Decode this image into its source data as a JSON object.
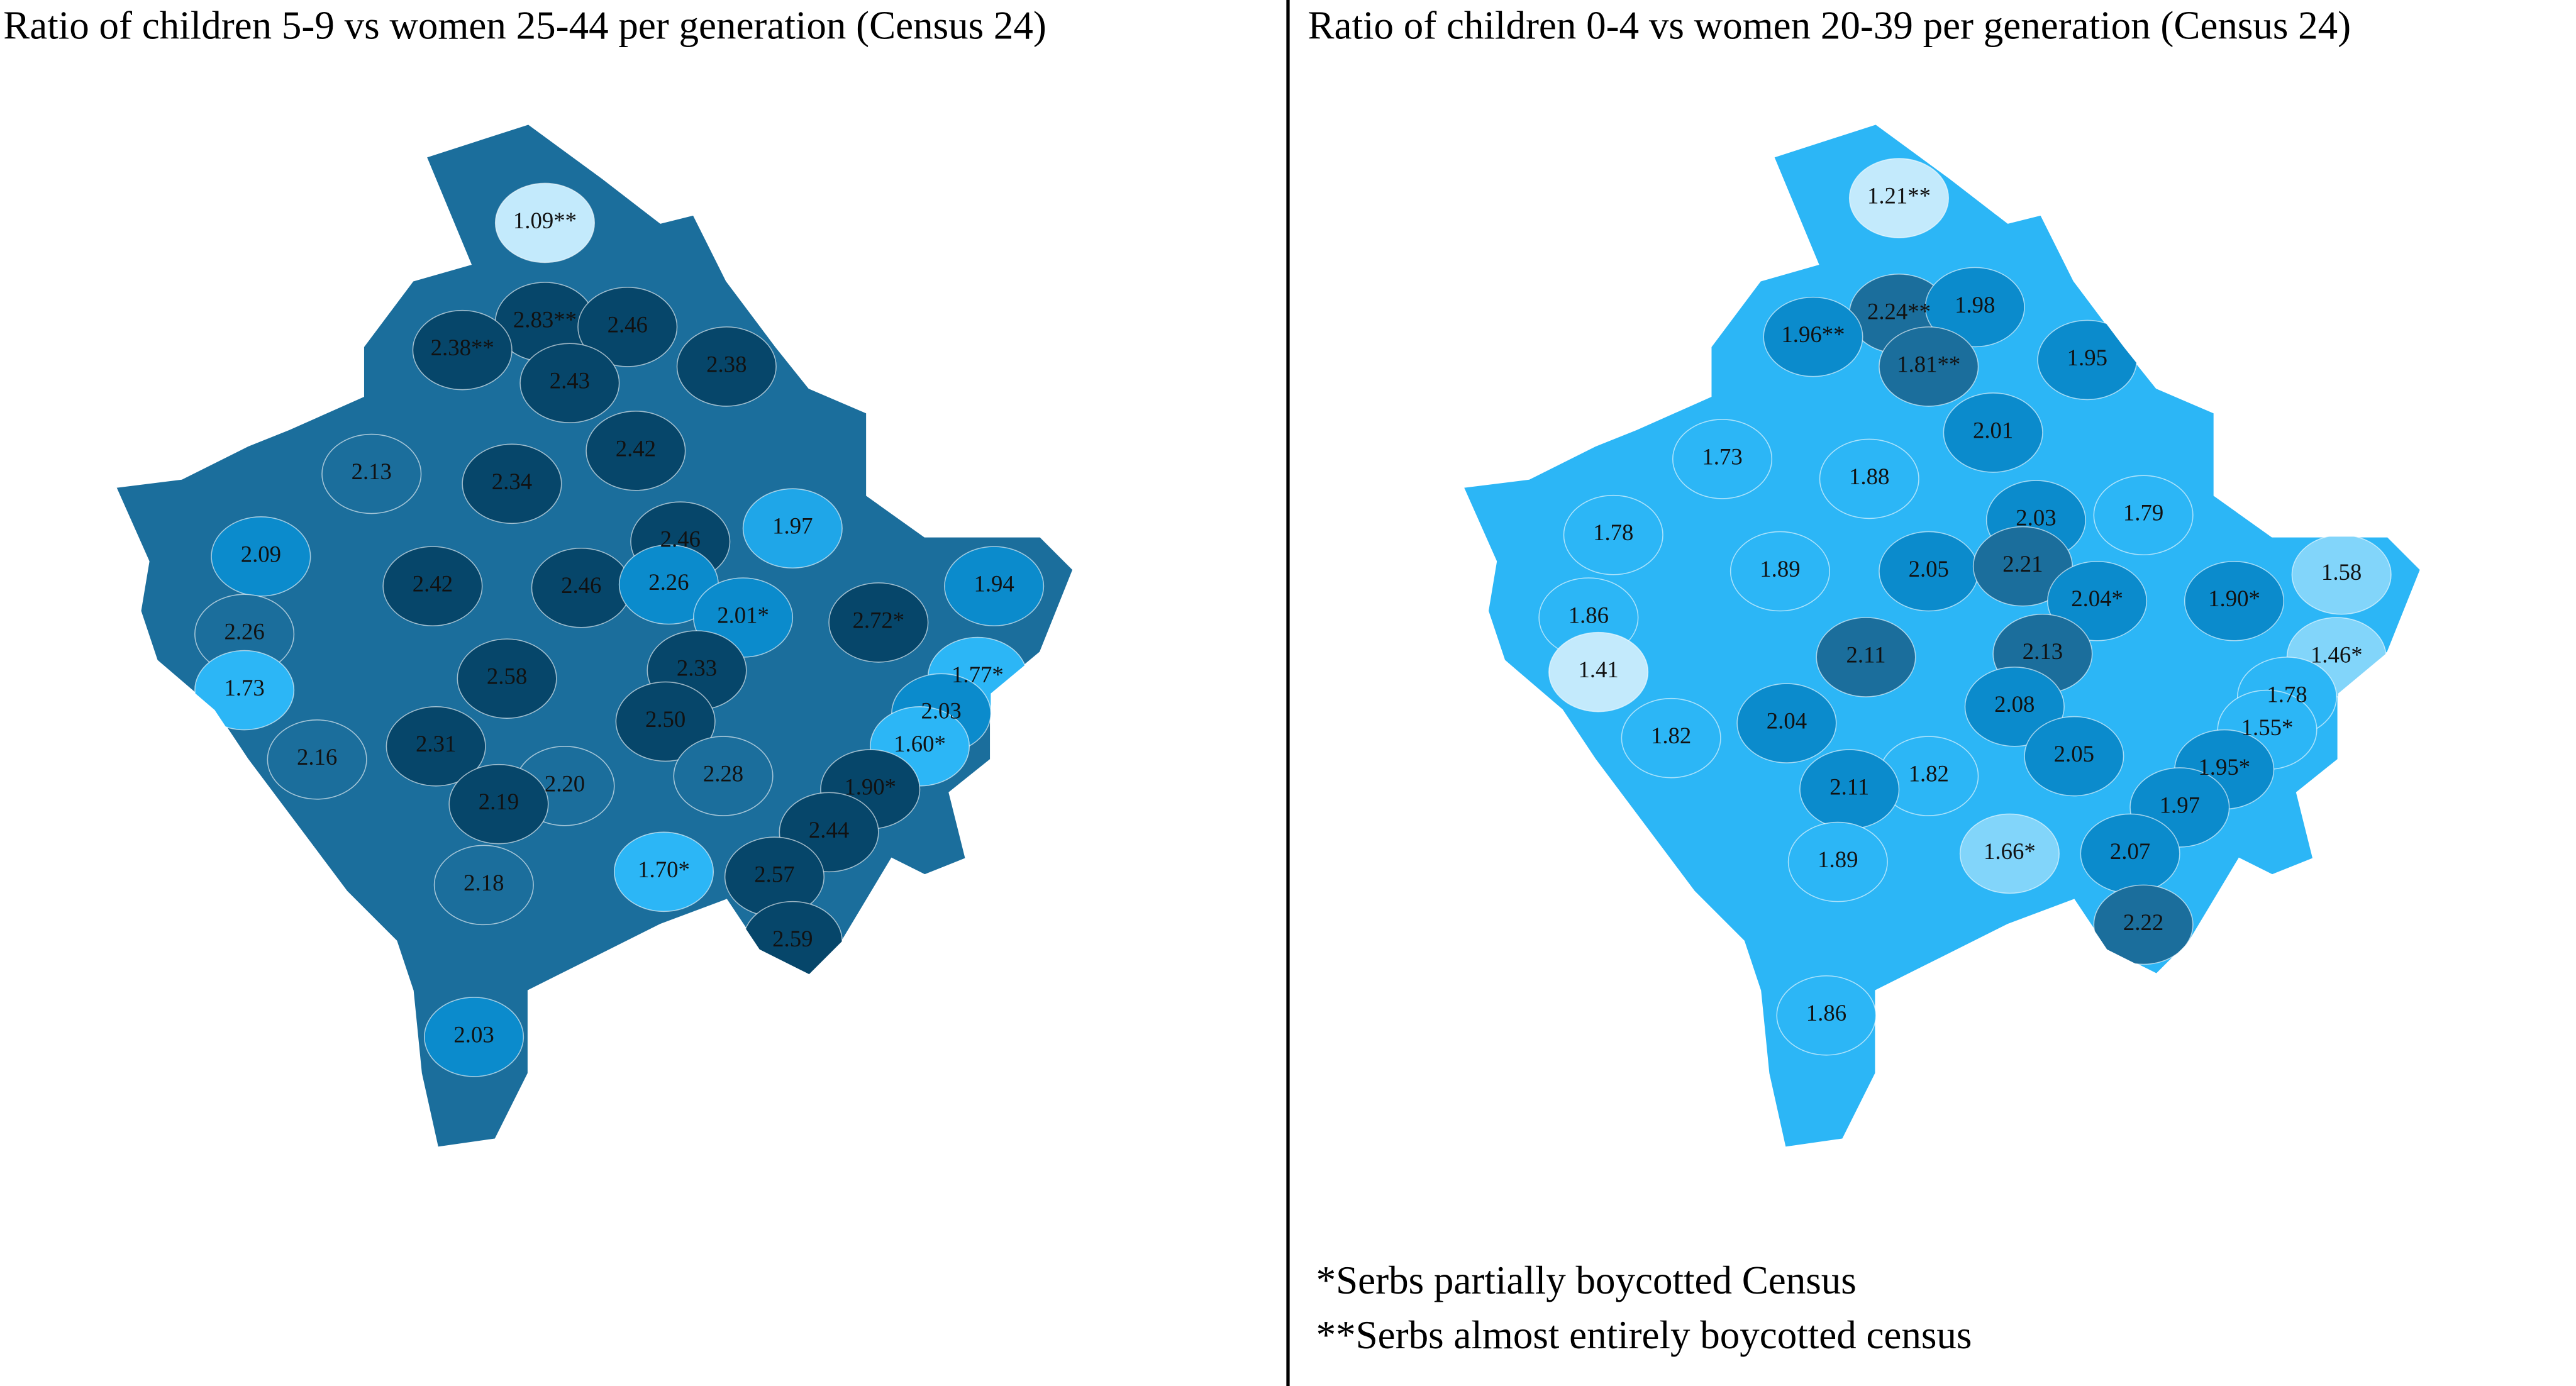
{
  "maps": [
    {
      "title": "Ratio of children 5-9 vs women 25-44 per generation (Census 24)",
      "regions": [
        {
          "label": "1.09**",
          "color": "#c3eafc"
        },
        {
          "label": "2.83**",
          "color": "#06466a"
        },
        {
          "label": "2.38**",
          "color": "#06466a"
        },
        {
          "label": "2.46",
          "color": "#06466a"
        },
        {
          "label": "2.43",
          "color": "#06466a"
        },
        {
          "label": "2.38",
          "color": "#06466a"
        },
        {
          "label": "2.13",
          "color": "#1b6e9c"
        },
        {
          "label": "2.42",
          "color": "#06466a"
        },
        {
          "label": "2.34",
          "color": "#06466a"
        },
        {
          "label": "2.09",
          "color": "#0b8bcc"
        },
        {
          "label": "1.97",
          "color": "#1fa6e8"
        },
        {
          "label": "2.46",
          "color": "#06466a"
        },
        {
          "label": "1.94",
          "color": "#0b8bcc"
        },
        {
          "label": "2.42",
          "color": "#06466a"
        },
        {
          "label": "2.46",
          "color": "#06466a"
        },
        {
          "label": "2.26",
          "color": "#0b8bcc"
        },
        {
          "label": "2.26",
          "color": "#1b6e9c"
        },
        {
          "label": "2.01*",
          "color": "#0b8bcc"
        },
        {
          "label": "2.72*",
          "color": "#06466a"
        },
        {
          "label": "1.73",
          "color": "#2cb6f6"
        },
        {
          "label": "2.33",
          "color": "#06466a"
        },
        {
          "label": "1.77*",
          "color": "#2cb6f6"
        },
        {
          "label": "2.58",
          "color": "#06466a"
        },
        {
          "label": "2.50",
          "color": "#06466a"
        },
        {
          "label": "2.03",
          "color": "#0b8bcc"
        },
        {
          "label": "2.16",
          "color": "#1b6e9c"
        },
        {
          "label": "2.31",
          "color": "#06466a"
        },
        {
          "label": "2.20",
          "color": "#1b6e9c"
        },
        {
          "label": "2.28",
          "color": "#1b6e9c"
        },
        {
          "label": "1.60*",
          "color": "#2cb6f6"
        },
        {
          "label": "1.90*",
          "color": "#06466a"
        },
        {
          "label": "2.19",
          "color": "#06466a"
        },
        {
          "label": "2.44",
          "color": "#06466a"
        },
        {
          "label": "2.18",
          "color": "#1b6e9c"
        },
        {
          "label": "1.70*",
          "color": "#2cb6f6"
        },
        {
          "label": "2.57",
          "color": "#06466a"
        },
        {
          "label": "2.59",
          "color": "#06466a"
        },
        {
          "label": "2.03",
          "color": "#0b8bcc"
        }
      ]
    },
    {
      "title": "Ratio of children 0-4 vs women 20-39 per generation (Census 24)",
      "regions": [
        {
          "label": "1.21**",
          "color": "#c3eafc"
        },
        {
          "label": "2.24**",
          "color": "#1b6e9c"
        },
        {
          "label": "1.98",
          "color": "#0b8bcc"
        },
        {
          "label": "1.96**",
          "color": "#0b8bcc"
        },
        {
          "label": "1.81**",
          "color": "#1b6e9c"
        },
        {
          "label": "1.95",
          "color": "#0b8bcc"
        },
        {
          "label": "2.01",
          "color": "#0b8bcc"
        },
        {
          "label": "1.73",
          "color": "#2cb6f6"
        },
        {
          "label": "1.88",
          "color": "#2cb6f6"
        },
        {
          "label": "2.03",
          "color": "#0b8bcc"
        },
        {
          "label": "1.79",
          "color": "#2cb6f6"
        },
        {
          "label": "1.58",
          "color": "#82d5fa"
        },
        {
          "label": "1.78",
          "color": "#2cb6f6"
        },
        {
          "label": "2.05",
          "color": "#0b8bcc"
        },
        {
          "label": "2.21",
          "color": "#1b6e9c"
        },
        {
          "label": "1.89",
          "color": "#2cb6f6"
        },
        {
          "label": "2.04*",
          "color": "#0b8bcc"
        },
        {
          "label": "1.90*",
          "color": "#0b8bcc"
        },
        {
          "label": "1.86",
          "color": "#2cb6f6"
        },
        {
          "label": "1.41",
          "color": "#c3eafc"
        },
        {
          "label": "1.46*",
          "color": "#82d5fa"
        },
        {
          "label": "2.11",
          "color": "#1b6e9c"
        },
        {
          "label": "2.13",
          "color": "#1b6e9c"
        },
        {
          "label": "1.78",
          "color": "#2cb6f6"
        },
        {
          "label": "2.08",
          "color": "#0b8bcc"
        },
        {
          "label": "1.55*",
          "color": "#2cb6f6"
        },
        {
          "label": "1.82",
          "color": "#2cb6f6"
        },
        {
          "label": "2.04",
          "color": "#0b8bcc"
        },
        {
          "label": "2.05",
          "color": "#0b8bcc"
        },
        {
          "label": "1.95*",
          "color": "#0b8bcc"
        },
        {
          "label": "1.82",
          "color": "#2cb6f6"
        },
        {
          "label": "2.11",
          "color": "#0b8bcc"
        },
        {
          "label": "1.97",
          "color": "#0b8bcc"
        },
        {
          "label": "1.89",
          "color": "#2cb6f6"
        },
        {
          "label": "1.66*",
          "color": "#82d5fa"
        },
        {
          "label": "2.07",
          "color": "#0b8bcc"
        },
        {
          "label": "2.22",
          "color": "#1b6e9c"
        },
        {
          "label": "1.86",
          "color": "#2cb6f6"
        }
      ]
    }
  ],
  "notes": [
    "*Serbs partially boycotted Census",
    "**Serbs almost entirely boycotted census"
  ]
}
